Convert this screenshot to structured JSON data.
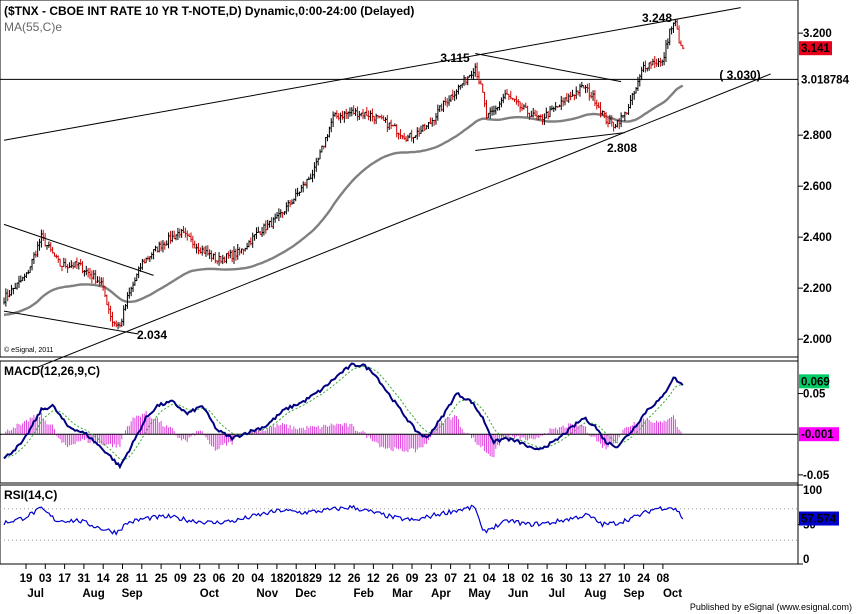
{
  "header": {
    "title": "($TNX - CBOE INT RATE 10 YR T-NOTE,D) Dynamic,0:00-24:00 (Delayed)",
    "ma_label": "MA(55,C)e"
  },
  "copyright": "© eSignal, 2011",
  "footer": "Published by eSignal (www.esignal.com)",
  "chart_data": [
    {
      "type": "candlestick",
      "title": "($TNX - CBOE INT RATE 10 YR T-NOTE,D) Dynamic,0:00-24:00 (Delayed)",
      "ylim": [
        1.93,
        3.33
      ],
      "yticks": [
        2.0,
        2.2,
        2.4,
        2.6,
        2.8,
        3.0,
        3.2
      ],
      "ytick_labels": [
        "2.000",
        "2.200",
        "2.400",
        "2.600",
        "2.800",
        "",
        "3.200"
      ],
      "x_day_labels": [
        "19",
        "03",
        "17",
        "31",
        "14",
        "28",
        "11",
        "25",
        "09",
        "23",
        "06",
        "20",
        "04",
        "18",
        "2018",
        "29",
        "12",
        "26",
        "12",
        "26",
        "09",
        "23",
        "07",
        "21",
        "04",
        "18",
        "02",
        "16",
        "30",
        "13",
        "27",
        "10",
        "24",
        "08"
      ],
      "x_month_labels": [
        {
          "label": "Jul",
          "after_tick": 0
        },
        {
          "label": "Aug",
          "after_tick": 3
        },
        {
          "label": "Sep",
          "after_tick": 5
        },
        {
          "label": "Oct",
          "after_tick": 9
        },
        {
          "label": "Nov",
          "after_tick": 12
        },
        {
          "label": "Dec",
          "after_tick": 14
        },
        {
          "label": "Feb",
          "after_tick": 17
        },
        {
          "label": "Mar",
          "after_tick": 19
        },
        {
          "label": "Apr",
          "after_tick": 21
        },
        {
          "label": "May",
          "after_tick": 23
        },
        {
          "label": "Jun",
          "after_tick": 25
        },
        {
          "label": "Jul",
          "after_tick": 27
        },
        {
          "label": "Aug",
          "after_tick": 29
        },
        {
          "label": "Sep",
          "after_tick": 31
        },
        {
          "label": "Oct",
          "after_tick": 33
        }
      ],
      "price_keypoints": [
        [
          0,
          2.16
        ],
        [
          4,
          2.19
        ],
        [
          12,
          2.25
        ],
        [
          20,
          2.4
        ],
        [
          30,
          2.29
        ],
        [
          40,
          2.29
        ],
        [
          52,
          2.22
        ],
        [
          58,
          2.07
        ],
        [
          62,
          2.05
        ],
        [
          66,
          2.16
        ],
        [
          74,
          2.3
        ],
        [
          84,
          2.37
        ],
        [
          94,
          2.42
        ],
        [
          104,
          2.36
        ],
        [
          114,
          2.31
        ],
        [
          126,
          2.34
        ],
        [
          136,
          2.42
        ],
        [
          146,
          2.47
        ],
        [
          156,
          2.56
        ],
        [
          166,
          2.66
        ],
        [
          176,
          2.87
        ],
        [
          186,
          2.89
        ],
        [
          196,
          2.88
        ],
        [
          206,
          2.84
        ],
        [
          216,
          2.79
        ],
        [
          226,
          2.83
        ],
        [
          236,
          2.93
        ],
        [
          246,
          3.01
        ],
        [
          252,
          3.07
        ],
        [
          256,
          2.96
        ],
        [
          258,
          2.87
        ],
        [
          262,
          2.89
        ],
        [
          268,
          2.96
        ],
        [
          276,
          2.91
        ],
        [
          286,
          2.86
        ],
        [
          296,
          2.91
        ],
        [
          304,
          2.96
        ],
        [
          310,
          2.99
        ],
        [
          316,
          2.94
        ],
        [
          322,
          2.86
        ],
        [
          326,
          2.84
        ],
        [
          332,
          2.88
        ],
        [
          338,
          2.98
        ],
        [
          342,
          3.07
        ],
        [
          348,
          3.09
        ],
        [
          352,
          3.08
        ],
        [
          356,
          3.21
        ],
        [
          359,
          3.24
        ],
        [
          362,
          3.14
        ]
      ],
      "latest_price": "3.141",
      "horizontal_line": {
        "value": 3.018784,
        "label": "3.018784"
      },
      "moving_average": {
        "name": "MA(55,C)e",
        "start": 2.27,
        "end": 3.0
      },
      "annotations": [
        {
          "text": "3.248",
          "value": 3.248
        },
        {
          "text": "3.115",
          "value": 3.115
        },
        {
          "text": "( 3.030)",
          "value": 3.03
        },
        {
          "text": "2.808",
          "value": 2.808
        },
        {
          "text": "2.034",
          "value": 2.034
        }
      ],
      "trendlines": [
        {
          "name": "upper-channel-line",
          "from": {
            "bar": 0,
            "value": 2.78
          },
          "to": {
            "bar": 394,
            "value": 3.3
          }
        },
        {
          "name": "lower-support-line",
          "from": {
            "bar": 18,
            "value": 1.89
          },
          "to": {
            "bar": 410,
            "value": 3.04
          }
        },
        {
          "name": "wedge-upper-line",
          "from": {
            "bar": 0,
            "value": 2.45
          },
          "to": {
            "bar": 80,
            "value": 2.25
          }
        },
        {
          "name": "wedge-lower-line",
          "from": {
            "bar": 0,
            "value": 2.11
          },
          "to": {
            "bar": 72,
            "value": 2.02
          }
        },
        {
          "name": "triangle-upper-line",
          "from": {
            "bar": 252,
            "value": 3.12
          },
          "to": {
            "bar": 330,
            "value": 3.01
          }
        },
        {
          "name": "triangle-lower-line",
          "from": {
            "bar": 252,
            "value": 2.74
          },
          "to": {
            "bar": 332,
            "value": 2.81
          }
        }
      ]
    },
    {
      "type": "line",
      "name": "MACD(12,26,9,C)",
      "ylim": [
        -0.06,
        0.09
      ],
      "ytick_labels": [
        "0.05",
        "-0.05"
      ],
      "ytick_values": [
        0.05,
        -0.05
      ],
      "latest_macd": "0.069",
      "latest_histogram": "-0.001",
      "macd_keypoints": [
        [
          0,
          -0.03
        ],
        [
          10,
          -0.01
        ],
        [
          20,
          0.03
        ],
        [
          26,
          0.035
        ],
        [
          34,
          0.01
        ],
        [
          44,
          0.0
        ],
        [
          56,
          -0.025
        ],
        [
          62,
          -0.04
        ],
        [
          68,
          -0.015
        ],
        [
          76,
          0.02
        ],
        [
          82,
          0.035
        ],
        [
          90,
          0.04
        ],
        [
          98,
          0.025
        ],
        [
          106,
          0.035
        ],
        [
          114,
          0.005
        ],
        [
          122,
          -0.005
        ],
        [
          130,
          0.002
        ],
        [
          140,
          0.01
        ],
        [
          150,
          0.03
        ],
        [
          160,
          0.04
        ],
        [
          170,
          0.055
        ],
        [
          180,
          0.075
        ],
        [
          186,
          0.085
        ],
        [
          192,
          0.085
        ],
        [
          198,
          0.075
        ],
        [
          204,
          0.055
        ],
        [
          212,
          0.03
        ],
        [
          220,
          0.005
        ],
        [
          226,
          -0.005
        ],
        [
          234,
          0.02
        ],
        [
          242,
          0.05
        ],
        [
          250,
          0.04
        ],
        [
          256,
          0.02
        ],
        [
          262,
          -0.01
        ],
        [
          268,
          -0.005
        ],
        [
          276,
          -0.01
        ],
        [
          284,
          -0.02
        ],
        [
          294,
          -0.01
        ],
        [
          302,
          0.005
        ],
        [
          310,
          0.02
        ],
        [
          316,
          0.01
        ],
        [
          322,
          -0.01
        ],
        [
          328,
          -0.015
        ],
        [
          336,
          0.005
        ],
        [
          344,
          0.03
        ],
        [
          352,
          0.045
        ],
        [
          358,
          0.07
        ],
        [
          363,
          0.06
        ]
      ],
      "hline": 0
    },
    {
      "type": "line",
      "name": "RSI(14,C)",
      "ylim": [
        0,
        100
      ],
      "ytick_labels": [
        "100",
        "50",
        "0"
      ],
      "ytick_values": [
        100,
        50,
        0
      ],
      "latest_value": "57.574",
      "rsi_keypoints": [
        [
          0,
          52
        ],
        [
          10,
          58
        ],
        [
          20,
          70
        ],
        [
          28,
          55
        ],
        [
          40,
          55
        ],
        [
          52,
          45
        ],
        [
          60,
          40
        ],
        [
          66,
          52
        ],
        [
          76,
          58
        ],
        [
          88,
          60
        ],
        [
          100,
          55
        ],
        [
          112,
          52
        ],
        [
          124,
          55
        ],
        [
          136,
          62
        ],
        [
          148,
          68
        ],
        [
          160,
          65
        ],
        [
          172,
          68
        ],
        [
          186,
          72
        ],
        [
          198,
          65
        ],
        [
          210,
          58
        ],
        [
          220,
          55
        ],
        [
          230,
          62
        ],
        [
          242,
          68
        ],
        [
          252,
          72
        ],
        [
          256,
          40
        ],
        [
          260,
          45
        ],
        [
          270,
          55
        ],
        [
          280,
          50
        ],
        [
          292,
          52
        ],
        [
          304,
          58
        ],
        [
          312,
          62
        ],
        [
          320,
          50
        ],
        [
          328,
          52
        ],
        [
          338,
          60
        ],
        [
          348,
          70
        ],
        [
          356,
          72
        ],
        [
          360,
          68
        ],
        [
          363,
          58
        ]
      ]
    }
  ]
}
